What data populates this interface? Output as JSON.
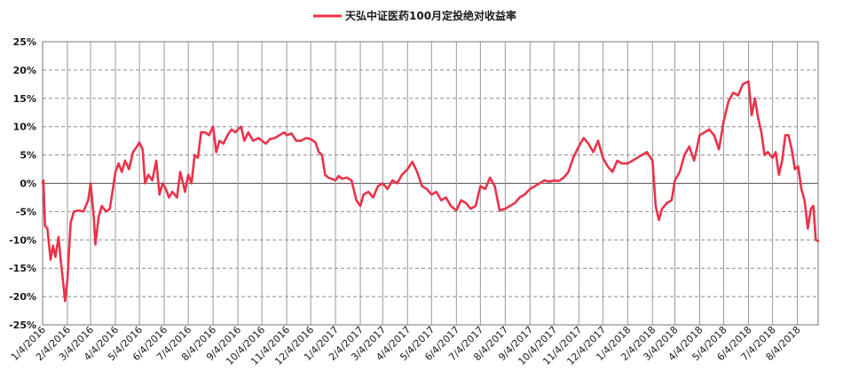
{
  "chart_data": {
    "type": "line",
    "title": "",
    "xlabel": "",
    "ylabel": "",
    "legend": {
      "position": "top-center",
      "entries": [
        "天弘中证医药100月定投绝对收益率"
      ]
    },
    "grid": {
      "horizontal": "dashed",
      "vertical": "solid"
    },
    "ylim": [
      -0.25,
      0.25
    ],
    "y_ticks": [
      0.25,
      0.2,
      0.15,
      0.1,
      0.05,
      0.0,
      -0.05,
      -0.1,
      -0.15,
      -0.2,
      -0.25
    ],
    "y_tick_labels": [
      "25%",
      "20%",
      "15%",
      "10%",
      "5%",
      "0%",
      "-5%",
      "-10%",
      "-15%",
      "-20%",
      "-25%"
    ],
    "x_tick_labels": [
      "1/4/2016",
      "2/4/2016",
      "3/4/2016",
      "4/4/2016",
      "5/4/2016",
      "6/4/2016",
      "7/4/2016",
      "8/4/2016",
      "9/4/2016",
      "10/4/2016",
      "11/4/2016",
      "12/4/2016",
      "1/4/2017",
      "2/4/2017",
      "3/4/2017",
      "4/4/2017",
      "5/4/2017",
      "6/4/2017",
      "7/4/2017",
      "8/4/2017",
      "9/4/2017",
      "10/4/2017",
      "11/4/2017",
      "12/4/2017",
      "1/4/2018",
      "2/4/2018",
      "3/4/2018",
      "4/4/2018",
      "5/4/2018",
      "6/4/2018",
      "7/4/2018",
      "8/4/2018"
    ],
    "series": [
      {
        "name": "天弘中证医药100月定投绝对收益率",
        "color": "#e8334a",
        "points": [
          [
            "1/4/2016",
            0.0
          ],
          [
            "1/5/2016",
            0.005
          ],
          [
            "1/7/2016",
            -0.075
          ],
          [
            "1/10/2016",
            -0.08
          ],
          [
            "1/14/2016",
            -0.135
          ],
          [
            "1/17/2016",
            -0.11
          ],
          [
            "1/20/2016",
            -0.13
          ],
          [
            "1/24/2016",
            -0.095
          ],
          [
            "1/27/2016",
            -0.14
          ],
          [
            "1/30/2016",
            -0.18
          ],
          [
            "2/1/2016",
            -0.208
          ],
          [
            "2/4/2016",
            -0.17
          ],
          [
            "2/8/2016",
            -0.07
          ],
          [
            "2/12/2016",
            -0.05
          ],
          [
            "2/18/2016",
            -0.048
          ],
          [
            "2/24/2016",
            -0.05
          ],
          [
            "3/1/2016",
            -0.03
          ],
          [
            "3/4/2016",
            0.0
          ],
          [
            "3/8/2016",
            -0.06
          ],
          [
            "3/10/2016",
            -0.108
          ],
          [
            "3/14/2016",
            -0.06
          ],
          [
            "3/18/2016",
            -0.04
          ],
          [
            "3/23/2016",
            -0.05
          ],
          [
            "3/28/2016",
            -0.045
          ],
          [
            "4/4/2016",
            0.02
          ],
          [
            "4/8/2016",
            0.035
          ],
          [
            "4/12/2016",
            0.02
          ],
          [
            "4/16/2016",
            0.04
          ],
          [
            "4/21/2016",
            0.025
          ],
          [
            "4/26/2016",
            0.055
          ],
          [
            "5/1/2016",
            0.065
          ],
          [
            "5/4/2016",
            0.072
          ],
          [
            "5/8/2016",
            0.06
          ],
          [
            "5/11/2016",
            0.0
          ],
          [
            "5/15/2016",
            0.015
          ],
          [
            "5/20/2016",
            0.005
          ],
          [
            "5/25/2016",
            0.04
          ],
          [
            "5/29/2016",
            -0.02
          ],
          [
            "6/2/2016",
            0.0
          ],
          [
            "6/6/2016",
            -0.01
          ],
          [
            "6/10/2016",
            -0.025
          ],
          [
            "6/14/2016",
            -0.015
          ],
          [
            "6/20/2016",
            -0.025
          ],
          [
            "6/24/2016",
            0.02
          ],
          [
            "6/30/2016",
            -0.015
          ],
          [
            "7/4/2016",
            0.015
          ],
          [
            "7/8/2016",
            0.0
          ],
          [
            "7/12/2016",
            0.05
          ],
          [
            "7/16/2016",
            0.045
          ],
          [
            "7/20/2016",
            0.09
          ],
          [
            "7/25/2016",
            0.09
          ],
          [
            "7/30/2016",
            0.085
          ],
          [
            "8/4/2016",
            0.1
          ],
          [
            "8/8/2016",
            0.055
          ],
          [
            "8/12/2016",
            0.075
          ],
          [
            "8/17/2016",
            0.07
          ],
          [
            "8/22/2016",
            0.085
          ],
          [
            "8/27/2016",
            0.095
          ],
          [
            "9/1/2016",
            0.09
          ],
          [
            "9/4/2016",
            0.095
          ],
          [
            "9/8/2016",
            0.1
          ],
          [
            "9/12/2016",
            0.075
          ],
          [
            "9/17/2016",
            0.09
          ],
          [
            "9/23/2016",
            0.075
          ],
          [
            "9/30/2016",
            0.08
          ],
          [
            "10/4/2016",
            0.075
          ],
          [
            "10/9/2016",
            0.07
          ],
          [
            "10/14/2016",
            0.078
          ],
          [
            "10/20/2016",
            0.08
          ],
          [
            "10/26/2016",
            0.085
          ],
          [
            "11/1/2016",
            0.09
          ],
          [
            "11/4/2016",
            0.085
          ],
          [
            "11/10/2016",
            0.088
          ],
          [
            "11/16/2016",
            0.075
          ],
          [
            "11/22/2016",
            0.075
          ],
          [
            "11/28/2016",
            0.08
          ],
          [
            "12/4/2016",
            0.078
          ],
          [
            "12/10/2016",
            0.072
          ],
          [
            "12/14/2016",
            0.055
          ],
          [
            "12/18/2016",
            0.05
          ],
          [
            "12/22/2016",
            0.015
          ],
          [
            "12/26/2016",
            0.01
          ],
          [
            "1/4/2017",
            0.005
          ],
          [
            "1/8/2017",
            0.013
          ],
          [
            "1/12/2017",
            0.008
          ],
          [
            "1/18/2017",
            0.01
          ],
          [
            "1/24/2017",
            0.005
          ],
          [
            "1/30/2017",
            -0.03
          ],
          [
            "2/4/2017",
            -0.04
          ],
          [
            "2/8/2017",
            -0.02
          ],
          [
            "2/14/2017",
            -0.015
          ],
          [
            "2/20/2017",
            -0.025
          ],
          [
            "2/26/2017",
            -0.005
          ],
          [
            "3/4/2017",
            0.0
          ],
          [
            "3/10/2017",
            -0.01
          ],
          [
            "3/16/2017",
            0.005
          ],
          [
            "3/22/2017",
            0.0
          ],
          [
            "3/28/2017",
            0.015
          ],
          [
            "4/4/2017",
            0.025
          ],
          [
            "4/10/2017",
            0.038
          ],
          [
            "4/16/2017",
            0.02
          ],
          [
            "4/22/2017",
            -0.005
          ],
          [
            "4/28/2017",
            -0.01
          ],
          [
            "5/4/2017",
            -0.02
          ],
          [
            "5/10/2017",
            -0.015
          ],
          [
            "5/16/2017",
            -0.03
          ],
          [
            "5/22/2017",
            -0.025
          ],
          [
            "5/28/2017",
            -0.04
          ],
          [
            "6/4/2017",
            -0.048
          ],
          [
            "6/10/2017",
            -0.03
          ],
          [
            "6/16/2017",
            -0.035
          ],
          [
            "6/22/2017",
            -0.045
          ],
          [
            "6/28/2017",
            -0.04
          ],
          [
            "7/4/2017",
            -0.005
          ],
          [
            "7/10/2017",
            -0.01
          ],
          [
            "7/16/2017",
            0.01
          ],
          [
            "7/22/2017",
            -0.005
          ],
          [
            "7/28/2017",
            -0.048
          ],
          [
            "8/4/2017",
            -0.045
          ],
          [
            "8/10/2017",
            -0.04
          ],
          [
            "8/16/2017",
            -0.035
          ],
          [
            "8/22/2017",
            -0.025
          ],
          [
            "8/28/2017",
            -0.02
          ],
          [
            "9/4/2017",
            -0.01
          ],
          [
            "9/10/2017",
            -0.005
          ],
          [
            "9/16/2017",
            0.0
          ],
          [
            "9/22/2017",
            0.005
          ],
          [
            "9/28/2017",
            0.003
          ],
          [
            "10/4/2017",
            0.005
          ],
          [
            "10/10/2017",
            0.004
          ],
          [
            "10/16/2017",
            0.01
          ],
          [
            "10/22/2017",
            0.02
          ],
          [
            "10/28/2017",
            0.045
          ],
          [
            "11/4/2017",
            0.065
          ],
          [
            "11/10/2017",
            0.08
          ],
          [
            "11/16/2017",
            0.07
          ],
          [
            "11/22/2017",
            0.055
          ],
          [
            "11/28/2017",
            0.075
          ],
          [
            "12/4/2017",
            0.045
          ],
          [
            "12/10/2017",
            0.03
          ],
          [
            "12/16/2017",
            0.02
          ],
          [
            "12/22/2017",
            0.04
          ],
          [
            "12/28/2017",
            0.035
          ],
          [
            "1/4/2018",
            0.035
          ],
          [
            "1/10/2018",
            0.04
          ],
          [
            "1/16/2018",
            0.045
          ],
          [
            "1/22/2018",
            0.05
          ],
          [
            "1/28/2018",
            0.055
          ],
          [
            "2/4/2018",
            0.04
          ],
          [
            "2/8/2018",
            -0.04
          ],
          [
            "2/12/2018",
            -0.065
          ],
          [
            "2/16/2018",
            -0.045
          ],
          [
            "2/22/2018",
            -0.035
          ],
          [
            "2/28/2018",
            -0.03
          ],
          [
            "3/4/2018",
            0.005
          ],
          [
            "3/10/2018",
            0.02
          ],
          [
            "3/16/2018",
            0.05
          ],
          [
            "3/22/2018",
            0.065
          ],
          [
            "3/28/2018",
            0.04
          ],
          [
            "4/4/2018",
            0.085
          ],
          [
            "4/10/2018",
            0.09
          ],
          [
            "4/16/2018",
            0.095
          ],
          [
            "4/22/2018",
            0.085
          ],
          [
            "4/28/2018",
            0.06
          ],
          [
            "5/4/2018",
            0.11
          ],
          [
            "5/10/2018",
            0.145
          ],
          [
            "5/16/2018",
            0.16
          ],
          [
            "5/22/2018",
            0.155
          ],
          [
            "5/28/2018",
            0.175
          ],
          [
            "6/4/2018",
            0.18
          ],
          [
            "6/8/2018",
            0.12
          ],
          [
            "6/12/2018",
            0.15
          ],
          [
            "6/16/2018",
            0.115
          ],
          [
            "6/20/2018",
            0.09
          ],
          [
            "6/24/2018",
            0.05
          ],
          [
            "6/28/2018",
            0.055
          ],
          [
            "7/4/2018",
            0.045
          ],
          [
            "7/8/2018",
            0.055
          ],
          [
            "7/12/2018",
            0.015
          ],
          [
            "7/16/2018",
            0.04
          ],
          [
            "7/20/2018",
            0.085
          ],
          [
            "7/24/2018",
            0.085
          ],
          [
            "7/28/2018",
            0.06
          ],
          [
            "8/1/2018",
            0.025
          ],
          [
            "8/5/2018",
            0.03
          ],
          [
            "8/9/2018",
            -0.01
          ],
          [
            "8/13/2018",
            -0.03
          ],
          [
            "8/17/2018",
            -0.08
          ],
          [
            "8/21/2018",
            -0.045
          ],
          [
            "8/24/2018",
            -0.04
          ],
          [
            "8/27/2018",
            -0.1
          ],
          [
            "8/30/2018",
            -0.102
          ]
        ]
      }
    ]
  }
}
